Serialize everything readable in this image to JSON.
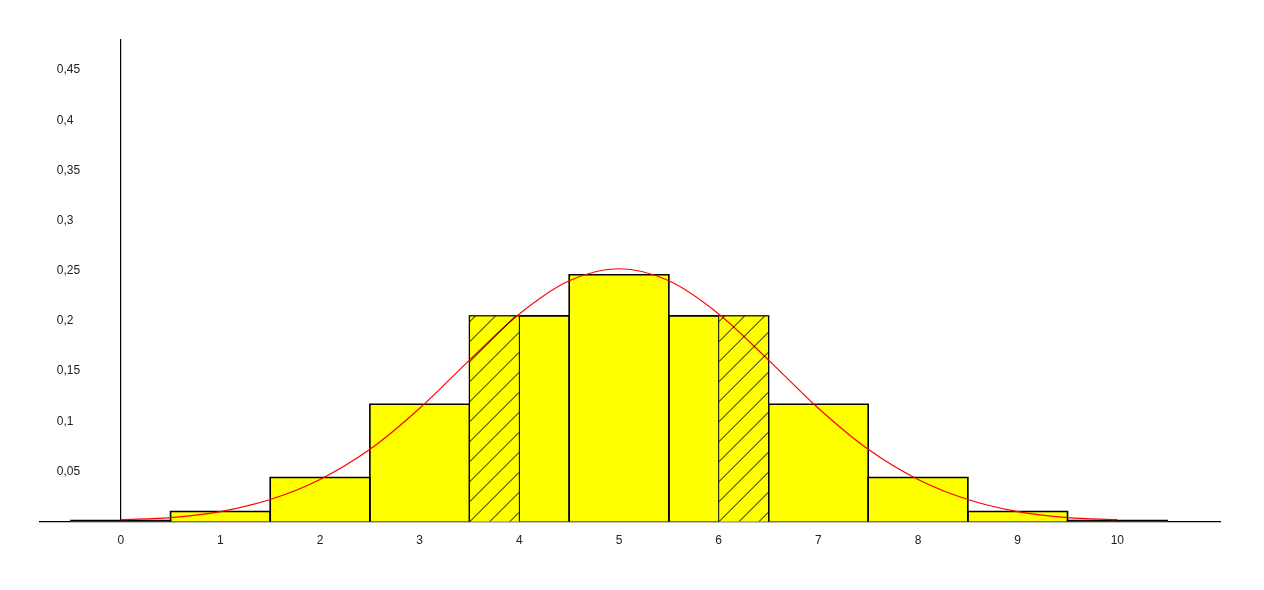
{
  "chart_data": {
    "type": "histogram",
    "series": [
      {
        "type": "histogram",
        "color": "#ffff00",
        "bins": [
          -0.5,
          0.5,
          1.5,
          2.5,
          3.5,
          4.5,
          5.5,
          6.5,
          7.5,
          8.5,
          9.5,
          10.5
        ],
        "values": [
          0.001,
          0.01,
          0.044,
          0.117,
          0.205,
          0.246,
          0.205,
          0.117,
          0.044,
          0.01,
          0.001
        ]
      },
      {
        "type": "histogram",
        "color": "#ffff00",
        "bins": [
          3.5,
          4,
          6,
          6.5
        ],
        "values": [
          0.205,
          null,
          0.205
        ]
      },
      {
        "type": "line",
        "color": "#ff0000",
        "marker": "none",
        "x": [
          0,
          0.5,
          1,
          1.5,
          2,
          2.5,
          3,
          3.5,
          4,
          4.5,
          5,
          5.5,
          6,
          6.5,
          7,
          7.5,
          8,
          8.5,
          9,
          9.5,
          10
        ],
        "values": [
          0.002,
          0.004,
          0.01,
          0.022,
          0.042,
          0.072,
          0.113,
          0.161,
          0.207,
          0.24,
          0.252,
          0.24,
          0.207,
          0.161,
          0.113,
          0.072,
          0.042,
          0.022,
          0.01,
          0.004,
          0.002
        ]
      }
    ],
    "xlim": [
      -0.81,
      11.03
    ],
    "xticks": [
      0,
      1,
      2,
      3,
      4,
      5,
      6,
      7,
      8,
      9,
      10
    ],
    "ylim": [
      0,
      0.48
    ],
    "yticks": [
      {
        "value": 0.05,
        "label": "0,05"
      },
      {
        "value": 0.1,
        "label": "0,1"
      },
      {
        "value": 0.15,
        "label": "0,15"
      },
      {
        "value": 0.2,
        "label": "0,2"
      },
      {
        "value": 0.25,
        "label": "0,25"
      },
      {
        "value": 0.3,
        "label": "0,3"
      },
      {
        "value": 0.35,
        "label": "0,35"
      },
      {
        "value": 0.4,
        "label": "0,4"
      },
      {
        "value": 0.45,
        "label": "0,45"
      }
    ]
  }
}
